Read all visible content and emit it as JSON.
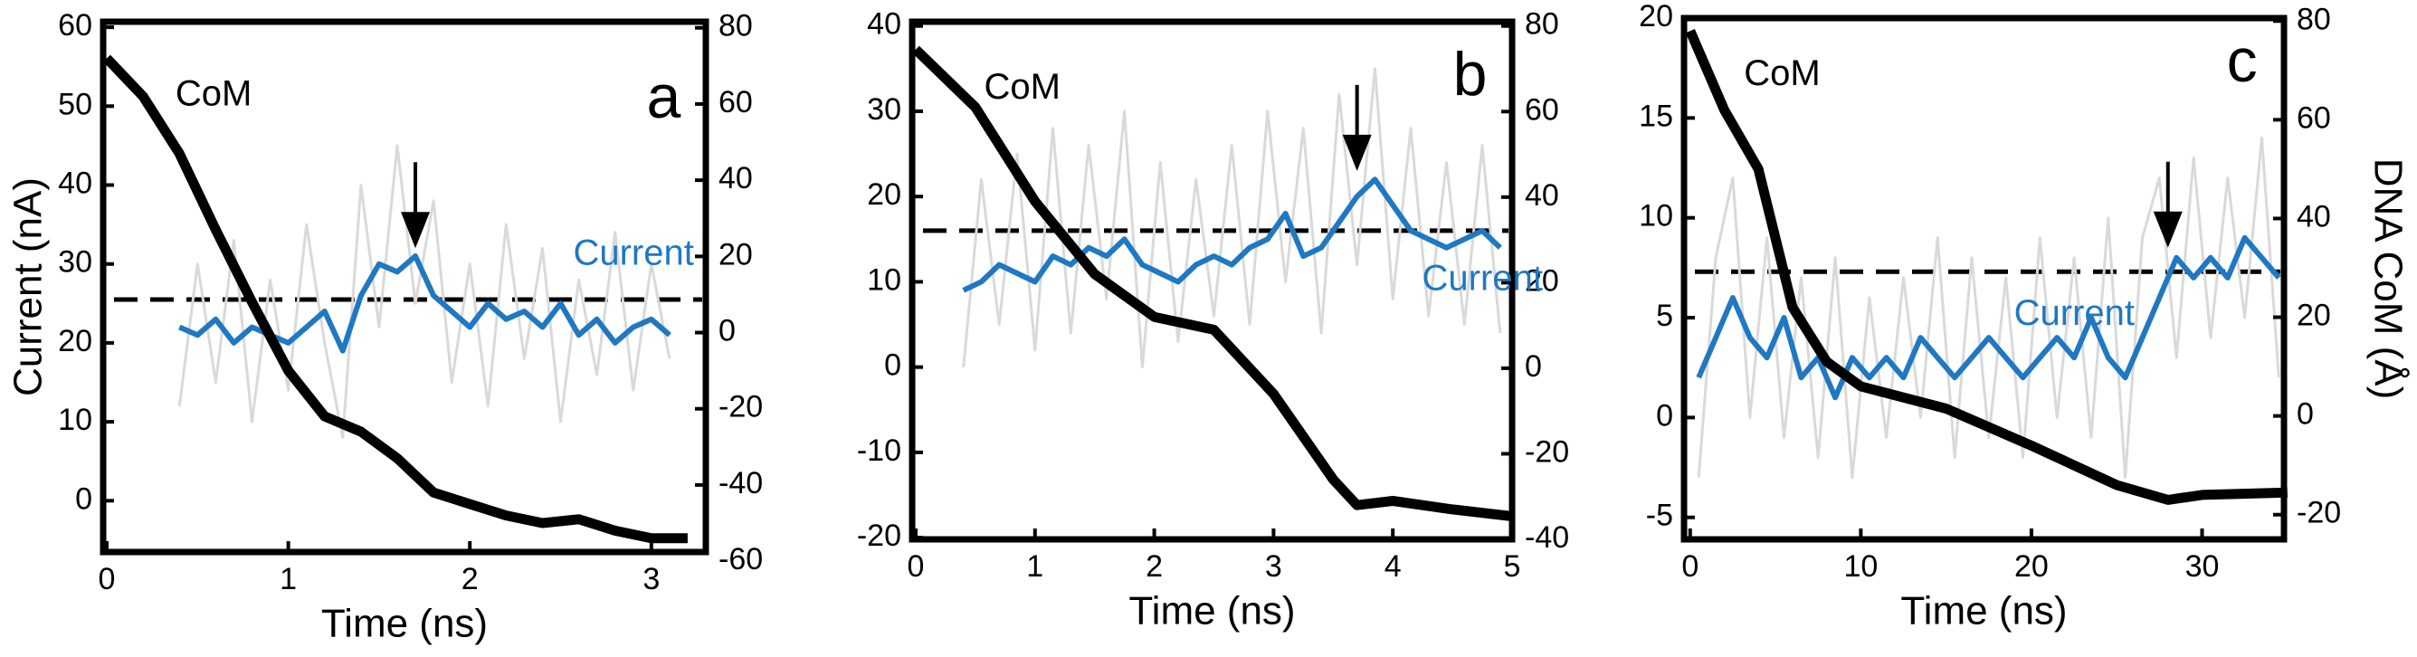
{
  "chart_data": [
    {
      "type": "line",
      "title": "a",
      "xlabel": "Time (ns)",
      "ylabel": "Current (nA)",
      "xlim": [
        -0.02,
        3.3
      ],
      "ylim": [
        -6.5,
        60.7
      ],
      "y2lim": [
        -57.6,
        81.6
      ],
      "xticks": [
        0,
        1,
        2,
        3
      ],
      "yticks": [
        0,
        10,
        20,
        30,
        40,
        50,
        60
      ],
      "y2ticks": [
        -60,
        -40,
        -20,
        0,
        20,
        40,
        60,
        80
      ],
      "reference_line": 25.5,
      "arrow": {
        "x": 1.7,
        "y": 32
      },
      "series": [
        {
          "color": "#d9d9d9",
          "x": [
            0.4,
            0.5,
            0.6,
            0.7,
            0.8,
            0.9,
            1.0,
            1.1,
            1.2,
            1.3,
            1.4,
            1.5,
            1.6,
            1.7,
            1.8,
            1.9,
            2.0,
            2.1,
            2.2,
            2.3,
            2.4,
            2.5,
            2.6,
            2.7,
            2.8,
            2.9,
            3.0,
            3.1
          ],
          "values": [
            12,
            30,
            15,
            33,
            10,
            28,
            14,
            35,
            20,
            8,
            40,
            22,
            45,
            25,
            38,
            15,
            30,
            12,
            35,
            18,
            32,
            10,
            28,
            16,
            34,
            14,
            30,
            18
          ]
        },
        {
          "name": "Current",
          "color": "#1f78c1",
          "x": [
            0.4,
            0.5,
            0.6,
            0.7,
            0.8,
            0.9,
            1.0,
            1.1,
            1.2,
            1.3,
            1.4,
            1.5,
            1.6,
            1.7,
            1.8,
            1.9,
            2.0,
            2.1,
            2.2,
            2.3,
            2.4,
            2.5,
            2.6,
            2.7,
            2.8,
            2.9,
            3.0,
            3.1
          ],
          "values": [
            22,
            21,
            23,
            20,
            22,
            21,
            20,
            22,
            24,
            19,
            26,
            30,
            29,
            31,
            26,
            24,
            22,
            25,
            23,
            24,
            22,
            25,
            21,
            23,
            20,
            22,
            23,
            21
          ]
        },
        {
          "name": "CoM",
          "color": "#000000",
          "axis": "y2",
          "x": [
            0,
            0.2,
            0.4,
            0.6,
            0.8,
            1.0,
            1.2,
            1.4,
            1.6,
            1.8,
            2.0,
            2.2,
            2.4,
            2.6,
            2.8,
            3.0,
            3.2
          ],
          "values": [
            72,
            62,
            47,
            27,
            8,
            -10,
            -22,
            -26,
            -33,
            -42,
            -45,
            -48,
            -50,
            -49,
            -52,
            -54,
            -54
          ]
        }
      ]
    },
    {
      "type": "line",
      "title": "b",
      "xlabel": "Time (ns)",
      "xlim": [
        -0.03,
        5.0
      ],
      "ylim": [
        -20.2,
        40.5
      ],
      "y2lim": [
        -40,
        81
      ],
      "xticks": [
        0,
        1,
        2,
        3,
        4,
        5
      ],
      "yticks": [
        -20,
        -10,
        0,
        10,
        20,
        30,
        40
      ],
      "y2ticks": [
        -40,
        -20,
        0,
        20,
        40,
        60,
        80
      ],
      "reference_line": 16,
      "arrow": {
        "x": 3.7,
        "y": 23
      },
      "series": [
        {
          "color": "#d9d9d9",
          "x": [
            0.4,
            0.55,
            0.7,
            0.85,
            1.0,
            1.15,
            1.3,
            1.45,
            1.6,
            1.75,
            1.9,
            2.05,
            2.2,
            2.35,
            2.5,
            2.65,
            2.8,
            2.95,
            3.1,
            3.25,
            3.4,
            3.55,
            3.7,
            3.85,
            4.0,
            4.15,
            4.3,
            4.45,
            4.6,
            4.75,
            4.9
          ],
          "values": [
            0,
            22,
            5,
            25,
            2,
            28,
            4,
            26,
            8,
            30,
            0,
            24,
            3,
            22,
            6,
            26,
            5,
            30,
            10,
            28,
            4,
            32,
            12,
            35,
            8,
            28,
            6,
            24,
            5,
            26,
            4
          ]
        },
        {
          "name": "Current",
          "color": "#1f78c1",
          "x": [
            0.4,
            0.55,
            0.7,
            0.85,
            1.0,
            1.15,
            1.3,
            1.45,
            1.6,
            1.75,
            1.9,
            2.05,
            2.2,
            2.35,
            2.5,
            2.65,
            2.8,
            2.95,
            3.1,
            3.25,
            3.4,
            3.55,
            3.7,
            3.85,
            4.0,
            4.15,
            4.3,
            4.45,
            4.6,
            4.75,
            4.9
          ],
          "values": [
            9,
            10,
            12,
            11,
            10,
            13,
            12,
            14,
            13,
            15,
            12,
            11,
            10,
            12,
            13,
            12,
            14,
            15,
            18,
            13,
            14,
            17,
            20,
            22,
            19,
            16,
            15,
            14,
            15,
            16,
            14
          ]
        },
        {
          "name": "CoM",
          "color": "#000000",
          "axis": "y2",
          "x": [
            0,
            0.5,
            1.0,
            1.5,
            2.0,
            2.5,
            3.0,
            3.5,
            3.7,
            4.0,
            4.5,
            5.0
          ],
          "values": [
            74.5,
            61,
            39,
            22,
            12,
            9,
            -6,
            -26,
            -32,
            -31,
            -33,
            -34.6
          ]
        }
      ]
    },
    {
      "type": "line",
      "title": "c",
      "xlabel": "Time (ns)",
      "y2label": "DNA CoM (Å)",
      "xlim": [
        -0.36,
        34.8
      ],
      "ylim": [
        -6.1,
        20
      ],
      "y2lim": [
        -25,
        80.6
      ],
      "xticks": [
        0,
        10,
        20,
        30
      ],
      "yticks": [
        -5,
        0,
        5,
        10,
        15,
        20
      ],
      "y2ticks": [
        -20,
        0,
        20,
        40,
        60,
        80
      ],
      "reference_line": 7.3,
      "arrow": {
        "x": 28,
        "y": 8.5
      },
      "series": [
        {
          "color": "#d9d9d9",
          "x": [
            0.5,
            1.5,
            2.5,
            3.5,
            4.5,
            5.5,
            6.5,
            7.5,
            8.5,
            9.5,
            10.5,
            11.5,
            12.5,
            13.5,
            14.5,
            15.5,
            16.5,
            17.5,
            18.5,
            19.5,
            20.5,
            21.5,
            22.5,
            23.5,
            24.5,
            25.5,
            26.5,
            27.5,
            28.5,
            29.5,
            30.5,
            31.5,
            32.5,
            33.5,
            34.5
          ],
          "values": [
            -3,
            8,
            12,
            0,
            9,
            -1,
            7,
            -2,
            8,
            -3,
            6,
            -1,
            7,
            0,
            9,
            -2,
            8,
            -1,
            7,
            -2,
            9,
            0,
            8,
            -1,
            10,
            -3,
            9,
            12,
            3,
            13,
            4,
            12,
            5,
            14,
            2
          ]
        },
        {
          "name": "Current",
          "color": "#1f78c1",
          "x": [
            0.5,
            1.5,
            2.5,
            3.5,
            4.5,
            5.5,
            6.5,
            7.5,
            8.5,
            9.5,
            10.5,
            11.5,
            12.5,
            13.5,
            14.5,
            15.5,
            16.5,
            17.5,
            18.5,
            19.5,
            20.5,
            21.5,
            22.5,
            23.5,
            24.5,
            25.5,
            26.5,
            27.5,
            28.5,
            29.5,
            30.5,
            31.5,
            32.5,
            33.5,
            34.5
          ],
          "values": [
            2,
            4,
            6,
            4,
            3,
            5,
            2,
            3,
            1,
            3,
            2,
            3,
            2,
            4,
            3,
            2,
            3,
            4,
            3,
            2,
            3,
            4,
            3,
            5,
            3,
            2,
            4,
            6,
            8,
            7,
            8,
            7,
            9,
            8,
            7
          ]
        },
        {
          "name": "CoM",
          "color": "#000000",
          "axis": "y2",
          "x": [
            0,
            2,
            4,
            6,
            8,
            10,
            15,
            20,
            25,
            28,
            30,
            35
          ],
          "values": [
            78,
            62,
            50,
            22,
            11,
            6,
            1.5,
            -6,
            -14,
            -17,
            -16,
            -15.5
          ]
        }
      ]
    }
  ]
}
